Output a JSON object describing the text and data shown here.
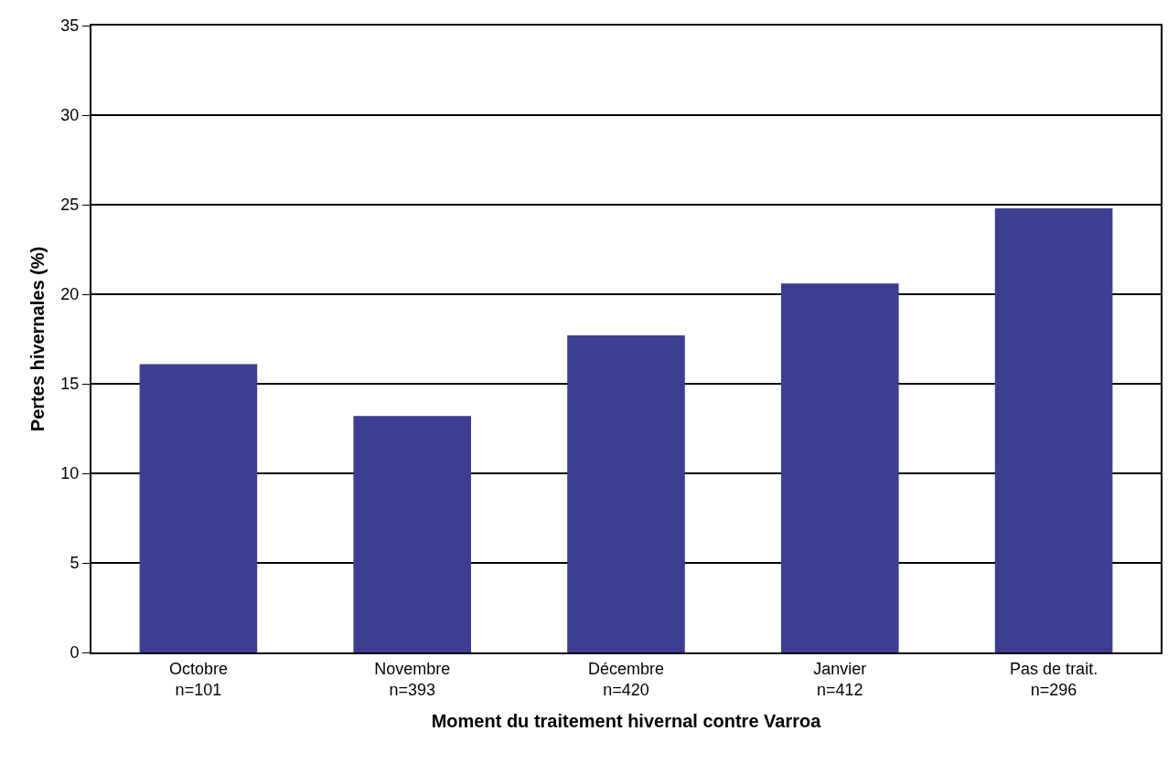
{
  "chart_data": {
    "type": "bar",
    "xlabel": "Moment du traitement hivernal contre Varroa",
    "ylabel": "Pertes hivernales (%)",
    "categories": [
      "Octobre\nn=101",
      "Novembre\nn=393",
      "Décembre\nn=420",
      "Janvier\nn=412",
      "Pas de trait.\nn=296"
    ],
    "values": [
      16.1,
      13.2,
      17.7,
      20.6,
      24.8
    ],
    "color": "#3d3d92",
    "ylim": [
      0,
      35
    ],
    "yticks": [
      0,
      5,
      10,
      15,
      20,
      25,
      30,
      35
    ],
    "grid": "y"
  }
}
